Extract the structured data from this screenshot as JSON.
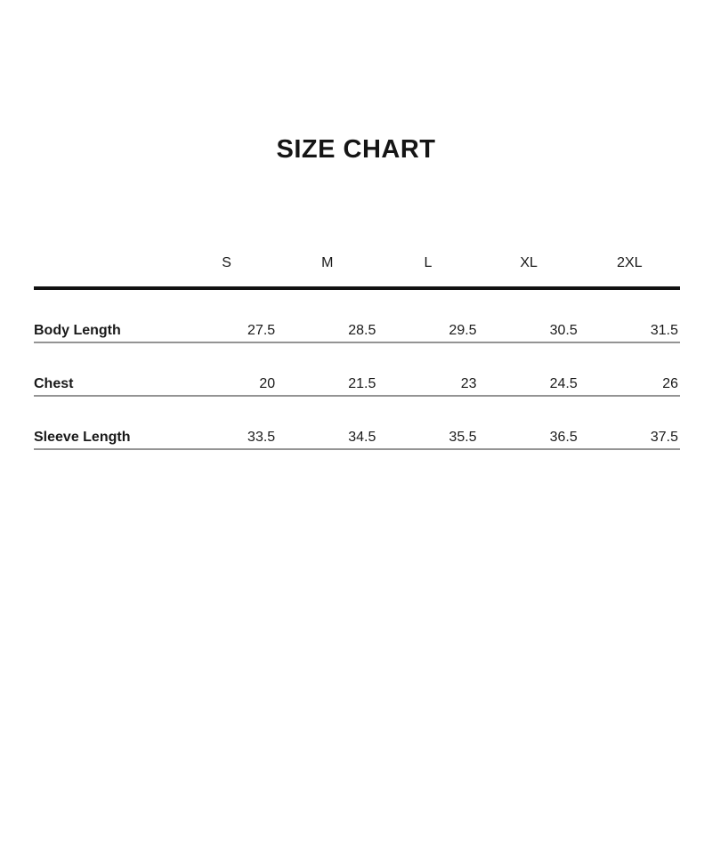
{
  "page": {
    "background": "#ffffff"
  },
  "colors": {
    "text": "#1a1a1a",
    "header_rule": "#111111",
    "row_rule": "#949494",
    "background": "#ffffff"
  },
  "chart_data": {
    "type": "table",
    "title": "SIZE CHART",
    "columns": [
      "",
      "S",
      "M",
      "L",
      "XL",
      "2XL"
    ],
    "rows": [
      {
        "label": "Body Length",
        "values": [
          27.5,
          28.5,
          29.5,
          30.5,
          31.5
        ]
      },
      {
        "label": "Chest",
        "values": [
          20,
          21.5,
          23,
          24.5,
          26
        ]
      },
      {
        "label": "Sleeve Length",
        "values": [
          33.5,
          34.5,
          35.5,
          36.5,
          37.5
        ]
      }
    ],
    "layout": {
      "legend": "none",
      "grid": "horizontal-rules-only",
      "header_rule_weight": "thick",
      "row_rule_weight": "thin"
    }
  }
}
